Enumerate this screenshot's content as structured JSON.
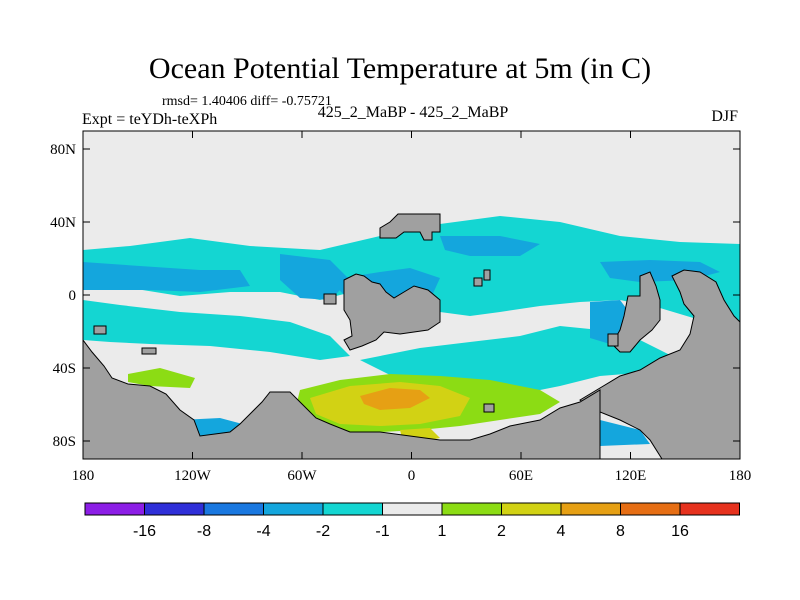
{
  "chart_data": {
    "type": "heatmap",
    "title": "Ocean Potential Temperature at 5m (in C)",
    "stats": "rmsd= 1.40406  diff= -0.75721",
    "left_label": "Expt = teYDh-teXPh",
    "center_label": "425_2_MaBP - 425_2_MaBP",
    "right_label": "DJF",
    "x_ticks": [
      "180",
      "120W",
      "60W",
      "0",
      "60E",
      "120E",
      "180"
    ],
    "y_ticks": [
      "80N",
      "40N",
      "0",
      "40S",
      "80S"
    ],
    "lon_range": [
      -180,
      180
    ],
    "lat_range": [
      -90,
      90
    ],
    "colorbar": {
      "labels": [
        "-16",
        "-8",
        "-4",
        "-2",
        "-1",
        "1",
        "2",
        "4",
        "8",
        "16"
      ],
      "colors": [
        "#8c1ee6",
        "#2f2fd8",
        "#1a78e0",
        "#14a6dd",
        "#14d6d2",
        "#ebebeb",
        "#8cdc14",
        "#d2d214",
        "#e6a014",
        "#e66e14",
        "#e6321e"
      ]
    },
    "land_color": "#a0a0a0",
    "fields": [
      {
        "region": "northern high latitudes",
        "value_range": "-1 to 1"
      },
      {
        "region": "tropical band 10N-30N",
        "value_range": "-2 to -1"
      },
      {
        "region": "equatorial patches",
        "value_range": "-4 to -2"
      },
      {
        "region": "South Atlantic 40S-60S",
        "value_range": "1 to 8"
      },
      {
        "region": "Southern Ocean near Antarctica",
        "value_range": "-4 to -1"
      }
    ]
  }
}
